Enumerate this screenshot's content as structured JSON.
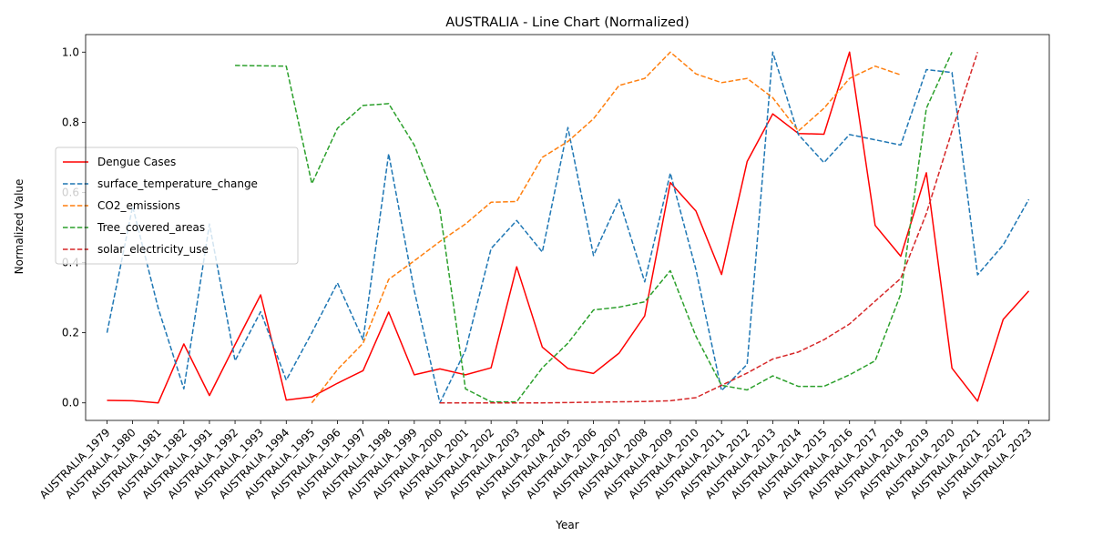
{
  "chart_data": {
    "type": "line",
    "title": "AUSTRALIA - Line Chart (Normalized)",
    "xlabel": "Year",
    "ylabel": "Normalized Value",
    "ylim": [
      -0.05,
      1.05
    ],
    "yticks": [
      "0.0",
      "0.2",
      "0.4",
      "0.6",
      "0.8",
      "1.0"
    ],
    "grid": false,
    "legend_position": "center-left",
    "categories": [
      "AUSTRALIA_1979",
      "AUSTRALIA_1980",
      "AUSTRALIA_1981",
      "AUSTRALIA_1982",
      "AUSTRALIA_1991",
      "AUSTRALIA_1992",
      "AUSTRALIA_1993",
      "AUSTRALIA_1994",
      "AUSTRALIA_1995",
      "AUSTRALIA_1996",
      "AUSTRALIA_1997",
      "AUSTRALIA_1998",
      "AUSTRALIA_1999",
      "AUSTRALIA_2000",
      "AUSTRALIA_2001",
      "AUSTRALIA_2002",
      "AUSTRALIA_2003",
      "AUSTRALIA_2004",
      "AUSTRALIA_2005",
      "AUSTRALIA_2006",
      "AUSTRALIA_2007",
      "AUSTRALIA_2008",
      "AUSTRALIA_2009",
      "AUSTRALIA_2010",
      "AUSTRALIA_2011",
      "AUSTRALIA_2012",
      "AUSTRALIA_2013",
      "AUSTRALIA_2014",
      "AUSTRALIA_2015",
      "AUSTRALIA_2016",
      "AUSTRALIA_2017",
      "AUSTRALIA_2018",
      "AUSTRALIA_2019",
      "AUSTRALIA_2020",
      "AUSTRALIA_2021",
      "AUSTRALIA_2022",
      "AUSTRALIA_2023"
    ],
    "series": [
      {
        "name": "Dengue Cases",
        "color": "#ff0000",
        "dashed": false,
        "values": [
          0.007,
          0.006,
          0.0,
          0.168,
          0.021,
          0.166,
          0.308,
          0.008,
          0.017,
          0.056,
          0.092,
          0.259,
          0.08,
          0.097,
          0.08,
          0.1,
          0.388,
          0.159,
          0.098,
          0.084,
          0.142,
          0.248,
          0.628,
          0.547,
          0.366,
          0.688,
          0.824,
          0.768,
          0.766,
          1.0,
          0.506,
          0.418,
          0.656,
          0.099,
          0.005,
          0.238,
          0.319
        ]
      },
      {
        "name": "surface_temperature_change",
        "color": "#1f77b4",
        "dashed": true,
        "values": [
          0.2,
          0.56,
          0.27,
          0.04,
          0.51,
          0.12,
          0.26,
          0.065,
          0.2,
          0.342,
          0.18,
          0.71,
          0.32,
          0.0,
          0.15,
          0.44,
          0.52,
          0.43,
          0.785,
          0.42,
          0.58,
          0.345,
          0.655,
          0.38,
          0.035,
          0.11,
          1.0,
          0.765,
          0.685,
          0.765,
          0.75,
          0.735,
          0.95,
          0.942,
          0.365,
          0.45,
          0.58
        ]
      },
      {
        "name": "CO2_emissions",
        "color": "#ff7f0e",
        "dashed": true,
        "values": [
          null,
          null,
          null,
          null,
          null,
          null,
          null,
          null,
          0.0,
          0.095,
          0.17,
          0.352,
          0.405,
          0.46,
          0.51,
          0.572,
          0.574,
          0.7,
          0.745,
          0.81,
          0.905,
          0.925,
          1.0,
          0.938,
          0.913,
          0.925,
          0.87,
          0.775,
          0.84,
          0.925,
          0.96,
          0.935,
          null,
          null,
          null,
          null,
          null
        ]
      },
      {
        "name": "Tree_covered_areas",
        "color": "#2ca02c",
        "dashed": true,
        "values": [
          null,
          null,
          null,
          null,
          null,
          0.962,
          0.961,
          0.96,
          0.625,
          0.783,
          0.848,
          0.853,
          0.735,
          0.55,
          0.04,
          0.003,
          0.003,
          0.1,
          0.17,
          0.265,
          0.273,
          0.288,
          0.377,
          0.19,
          0.05,
          0.037,
          0.077,
          0.047,
          0.047,
          0.08,
          0.12,
          0.31,
          0.84,
          1.0,
          null,
          null,
          null
        ]
      },
      {
        "name": "solar_electricity_use",
        "color": "#d62728",
        "dashed": true,
        "values": [
          null,
          null,
          null,
          null,
          null,
          null,
          null,
          null,
          null,
          null,
          null,
          null,
          null,
          0.0,
          0.0,
          0.0,
          0.0,
          0.0,
          0.001,
          0.002,
          0.003,
          0.004,
          0.006,
          0.015,
          0.05,
          0.085,
          0.125,
          0.145,
          0.18,
          0.225,
          0.29,
          0.355,
          0.54,
          0.775,
          1.0,
          null,
          null
        ]
      }
    ]
  }
}
